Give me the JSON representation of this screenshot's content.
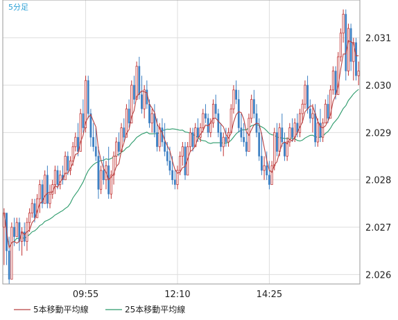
{
  "chart_data": {
    "type": "candlestick",
    "timeframe_label": "5分足",
    "x_tick_labels": [
      "09:55",
      "12:10",
      "14:25"
    ],
    "y_tick_labels": [
      "2.026",
      "2.027",
      "2.028",
      "2.029",
      "2.030",
      "2.031"
    ],
    "ylim": [
      2.0258,
      2.0318
    ],
    "grid": true,
    "legend_position": "bottom-left",
    "series": [
      {
        "name": "5本移動平均線",
        "color": "#b84040"
      },
      {
        "name": "25本移動平均線",
        "color": "#2a9a6a"
      }
    ],
    "candles_up_color": "#ffffff",
    "candles_up_border": "#c03030",
    "candles_down_color": "#3c7fc2",
    "tick_candle_index": [
      32,
      68,
      104
    ],
    "candles": [
      [
        2.027,
        2.0274,
        2.0262,
        2.0273
      ],
      [
        2.0273,
        2.0273,
        2.0262,
        2.0265
      ],
      [
        2.0265,
        2.0268,
        2.0258,
        2.0259
      ],
      [
        2.0259,
        2.0271,
        2.0259,
        2.027
      ],
      [
        2.027,
        2.0272,
        2.0266,
        2.0268
      ],
      [
        2.0268,
        2.0272,
        2.0268,
        2.0271
      ],
      [
        2.0271,
        2.0272,
        2.0265,
        2.0267
      ],
      [
        2.0267,
        2.027,
        2.0264,
        2.0269
      ],
      [
        2.0269,
        2.0271,
        2.0266,
        2.0267
      ],
      [
        2.0267,
        2.0272,
        2.0265,
        2.0271
      ],
      [
        2.0271,
        2.0274,
        2.0269,
        2.0273
      ],
      [
        2.0273,
        2.0276,
        2.0272,
        2.0275
      ],
      [
        2.0275,
        2.0276,
        2.0271,
        2.0272
      ],
      [
        2.0272,
        2.0277,
        2.0272,
        2.0276
      ],
      [
        2.0276,
        2.028,
        2.0273,
        2.0279
      ],
      [
        2.0279,
        2.028,
        2.0274,
        2.0275
      ],
      [
        2.0275,
        2.0282,
        2.0275,
        2.0281
      ],
      [
        2.0281,
        2.0283,
        2.0274,
        2.0275
      ],
      [
        2.0275,
        2.0279,
        2.0274,
        2.0277
      ],
      [
        2.0277,
        2.028,
        2.0276,
        2.0279
      ],
      [
        2.0279,
        2.0283,
        2.0277,
        2.0282
      ],
      [
        2.0282,
        2.0283,
        2.0278,
        2.0279
      ],
      [
        2.0279,
        2.0282,
        2.0278,
        2.0281
      ],
      [
        2.0281,
        2.0283,
        2.0279,
        2.028
      ],
      [
        2.028,
        2.0286,
        2.028,
        2.0285
      ],
      [
        2.0285,
        2.0286,
        2.0281,
        2.0282
      ],
      [
        2.0282,
        2.0285,
        2.0281,
        2.0284
      ],
      [
        2.0284,
        2.0288,
        2.0283,
        2.0287
      ],
      [
        2.0287,
        2.029,
        2.0286,
        2.0289
      ],
      [
        2.0289,
        2.0292,
        2.0285,
        2.0286
      ],
      [
        2.0286,
        2.0295,
        2.0286,
        2.0294
      ],
      [
        2.0294,
        2.0297,
        2.029,
        2.0291
      ],
      [
        2.0291,
        2.0302,
        2.029,
        2.0301
      ],
      [
        2.0301,
        2.0302,
        2.0293,
        2.0294
      ],
      [
        2.0294,
        2.0295,
        2.0287,
        2.0289
      ],
      [
        2.0289,
        2.0292,
        2.0286,
        2.0287
      ],
      [
        2.0287,
        2.0291,
        2.0284,
        2.0285
      ],
      [
        2.0285,
        2.0287,
        2.0276,
        2.0278
      ],
      [
        2.0278,
        2.0283,
        2.0277,
        2.0282
      ],
      [
        2.0282,
        2.0285,
        2.0279,
        2.028
      ],
      [
        2.028,
        2.0284,
        2.0278,
        2.0283
      ],
      [
        2.0283,
        2.0287,
        2.0276,
        2.0277
      ],
      [
        2.0277,
        2.0282,
        2.0276,
        2.0281
      ],
      [
        2.0281,
        2.0286,
        2.0279,
        2.0285
      ],
      [
        2.0285,
        2.0289,
        2.0283,
        2.0288
      ],
      [
        2.0288,
        2.029,
        2.0285,
        2.0286
      ],
      [
        2.0286,
        2.0292,
        2.0286,
        2.0291
      ],
      [
        2.0291,
        2.0293,
        2.0288,
        2.0289
      ],
      [
        2.0289,
        2.0296,
        2.0289,
        2.0295
      ],
      [
        2.0295,
        2.0297,
        2.0291,
        2.0292
      ],
      [
        2.0292,
        2.0301,
        2.0292,
        2.03
      ],
      [
        2.03,
        2.0302,
        2.0296,
        2.0297
      ],
      [
        2.0297,
        2.0305,
        2.0297,
        2.0304
      ],
      [
        2.0304,
        2.0306,
        2.0297,
        2.0298
      ],
      [
        2.0298,
        2.0302,
        2.0294,
        2.0295
      ],
      [
        2.0295,
        2.03,
        2.0293,
        2.0299
      ],
      [
        2.0299,
        2.0301,
        2.0295,
        2.0296
      ],
      [
        2.0296,
        2.0297,
        2.0291,
        2.0292
      ],
      [
        2.0292,
        2.0295,
        2.029,
        2.0294
      ],
      [
        2.0294,
        2.0296,
        2.0289,
        2.029
      ],
      [
        2.029,
        2.0293,
        2.0286,
        2.0287
      ],
      [
        2.0287,
        2.0292,
        2.0286,
        2.0291
      ],
      [
        2.0291,
        2.0293,
        2.0287,
        2.0288
      ],
      [
        2.0288,
        2.0292,
        2.0285,
        2.0286
      ],
      [
        2.0286,
        2.0288,
        2.0283,
        2.0284
      ],
      [
        2.0284,
        2.0287,
        2.0281,
        2.0282
      ],
      [
        2.0282,
        2.0285,
        2.0279,
        2.028
      ],
      [
        2.028,
        2.0282,
        2.0278,
        2.0279
      ],
      [
        2.0279,
        2.0283,
        2.0278,
        2.0282
      ],
      [
        2.0282,
        2.0286,
        2.0281,
        2.0285
      ],
      [
        2.0285,
        2.0288,
        2.0283,
        2.0287
      ],
      [
        2.0287,
        2.0288,
        2.028,
        2.0281
      ],
      [
        2.0281,
        2.0288,
        2.0281,
        2.0287
      ],
      [
        2.0287,
        2.0291,
        2.0286,
        2.029
      ],
      [
        2.029,
        2.0291,
        2.0286,
        2.0287
      ],
      [
        2.0287,
        2.0292,
        2.0287,
        2.0291
      ],
      [
        2.0291,
        2.0293,
        2.0288,
        2.0289
      ],
      [
        2.0289,
        2.0292,
        2.0288,
        2.0291
      ],
      [
        2.0291,
        2.0295,
        2.029,
        2.0294
      ],
      [
        2.0294,
        2.0296,
        2.0292,
        2.0293
      ],
      [
        2.0293,
        2.0294,
        2.0289,
        2.029
      ],
      [
        2.029,
        2.0293,
        2.0289,
        2.0292
      ],
      [
        2.0292,
        2.0297,
        2.0291,
        2.0296
      ],
      [
        2.0296,
        2.0298,
        2.0293,
        2.0294
      ],
      [
        2.0294,
        2.0295,
        2.0289,
        2.029
      ],
      [
        2.029,
        2.0292,
        2.0286,
        2.0287
      ],
      [
        2.0287,
        2.029,
        2.0285,
        2.0289
      ],
      [
        2.0289,
        2.0291,
        2.0287,
        2.0288
      ],
      [
        2.0288,
        2.0291,
        2.0287,
        2.029
      ],
      [
        2.029,
        2.0296,
        2.029,
        2.0295
      ],
      [
        2.0295,
        2.03,
        2.0294,
        2.0299
      ],
      [
        2.0299,
        2.0301,
        2.0296,
        2.0297
      ],
      [
        2.0297,
        2.0299,
        2.029,
        2.0291
      ],
      [
        2.0291,
        2.0294,
        2.0288,
        2.0289
      ],
      [
        2.0289,
        2.0292,
        2.0287,
        2.0288
      ],
      [
        2.0288,
        2.029,
        2.0285,
        2.0286
      ],
      [
        2.0286,
        2.0294,
        2.0286,
        2.0293
      ],
      [
        2.0293,
        2.0298,
        2.0292,
        2.0297
      ],
      [
        2.0297,
        2.0299,
        2.0293,
        2.0294
      ],
      [
        2.0294,
        2.0296,
        2.0289,
        2.029
      ],
      [
        2.029,
        2.0293,
        2.0284,
        2.0285
      ],
      [
        2.0285,
        2.029,
        2.0281,
        2.0282
      ],
      [
        2.0282,
        2.0285,
        2.028,
        2.0283
      ],
      [
        2.0283,
        2.0286,
        2.028,
        2.0281
      ],
      [
        2.0281,
        2.0284,
        2.0278,
        2.0279
      ],
      [
        2.0279,
        2.0284,
        2.0279,
        2.0283
      ],
      [
        2.0283,
        2.0291,
        2.0282,
        2.029
      ],
      [
        2.029,
        2.0292,
        2.0285,
        2.0286
      ],
      [
        2.0286,
        2.0292,
        2.0285,
        2.0291
      ],
      [
        2.0291,
        2.0294,
        2.0287,
        2.0288
      ],
      [
        2.0288,
        2.029,
        2.0284,
        2.0285
      ],
      [
        2.0285,
        2.0289,
        2.0284,
        2.0288
      ],
      [
        2.0288,
        2.0292,
        2.0287,
        2.0291
      ],
      [
        2.0291,
        2.0293,
        2.0288,
        2.0289
      ],
      [
        2.0289,
        2.0293,
        2.0288,
        2.0292
      ],
      [
        2.0292,
        2.0294,
        2.0289,
        2.029
      ],
      [
        2.029,
        2.0295,
        2.0289,
        2.0294
      ],
      [
        2.0294,
        2.0297,
        2.0292,
        2.0296
      ],
      [
        2.0296,
        2.0301,
        2.0295,
        2.03
      ],
      [
        2.03,
        2.0302,
        2.0294,
        2.0295
      ],
      [
        2.0295,
        2.0297,
        2.0292,
        2.0293
      ],
      [
        2.0293,
        2.0296,
        2.029,
        2.0294
      ],
      [
        2.0294,
        2.0296,
        2.0287,
        2.0288
      ],
      [
        2.0288,
        2.0293,
        2.0287,
        2.0292
      ],
      [
        2.0292,
        2.0295,
        2.0288,
        2.0289
      ],
      [
        2.0289,
        2.0293,
        2.0288,
        2.0292
      ],
      [
        2.0292,
        2.0297,
        2.0292,
        2.0296
      ],
      [
        2.0296,
        2.0298,
        2.0292,
        2.0293
      ],
      [
        2.0293,
        2.03,
        2.0293,
        2.0299
      ],
      [
        2.0299,
        2.0304,
        2.0298,
        2.0303
      ],
      [
        2.0303,
        2.0304,
        2.0297,
        2.0298
      ],
      [
        2.0298,
        2.0307,
        2.0298,
        2.0306
      ],
      [
        2.0306,
        2.0312,
        2.0305,
        2.0311
      ],
      [
        2.0311,
        2.0316,
        2.0309,
        2.0315
      ],
      [
        2.0315,
        2.0316,
        2.0301,
        2.0303
      ],
      [
        2.0303,
        2.0313,
        2.0302,
        2.0312
      ],
      [
        2.0312,
        2.0313,
        2.0303,
        2.0305
      ],
      [
        2.0305,
        2.031,
        2.0301,
        2.0309
      ],
      [
        2.0309,
        2.031,
        2.0301,
        2.0302
      ],
      [
        2.0302,
        2.0305,
        2.03,
        2.0303
      ]
    ]
  }
}
